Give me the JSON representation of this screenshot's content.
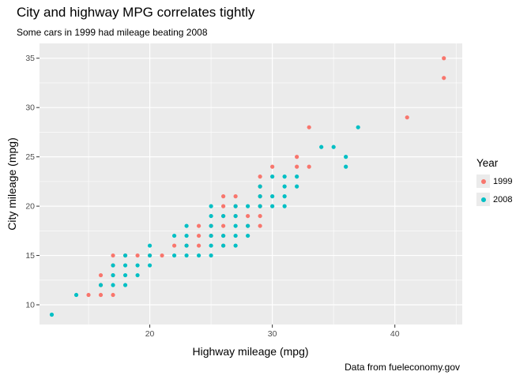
{
  "chart_data": {
    "type": "scatter",
    "title": "City and highway MPG correlates tightly",
    "subtitle": "Some cars in 1999 had mileage beating 2008",
    "caption": "Data from fueleconomy.gov",
    "xlabel": "Highway mileage (mpg)",
    "ylabel": "City mileage (mpg)",
    "xlim": [
      11,
      45.5
    ],
    "ylim": [
      8,
      36.5
    ],
    "x_ticks": [
      20,
      30,
      40
    ],
    "y_ticks": [
      10,
      15,
      20,
      25,
      30,
      35
    ],
    "grid": true,
    "legend_position": "right",
    "legend_title": "Year",
    "series": [
      {
        "name": "1999",
        "color": "#F8766D",
        "points": [
          [
            15,
            11
          ],
          [
            16,
            11
          ],
          [
            17,
            11
          ],
          [
            16,
            12
          ],
          [
            16,
            13
          ],
          [
            17,
            13
          ],
          [
            17,
            14
          ],
          [
            17,
            15
          ],
          [
            18,
            15
          ],
          [
            19,
            15
          ],
          [
            20,
            15
          ],
          [
            21,
            15
          ],
          [
            22,
            16
          ],
          [
            23,
            16
          ],
          [
            24,
            16
          ],
          [
            24,
            17
          ],
          [
            25,
            17
          ],
          [
            26,
            16
          ],
          [
            26,
            17
          ],
          [
            24,
            18
          ],
          [
            25,
            18
          ],
          [
            26,
            18
          ],
          [
            26,
            19
          ],
          [
            26,
            20
          ],
          [
            26,
            21
          ],
          [
            27,
            19
          ],
          [
            27,
            20
          ],
          [
            27,
            21
          ],
          [
            28,
            18
          ],
          [
            28,
            19
          ],
          [
            29,
            18
          ],
          [
            29,
            19
          ],
          [
            29,
            20
          ],
          [
            29,
            21
          ],
          [
            29,
            22
          ],
          [
            29,
            23
          ],
          [
            30,
            24
          ],
          [
            32,
            24
          ],
          [
            32,
            25
          ],
          [
            33,
            24
          ],
          [
            33,
            28
          ],
          [
            41,
            29
          ],
          [
            44,
            33
          ],
          [
            44,
            35
          ]
        ]
      },
      {
        "name": "2008",
        "color": "#00BFC4",
        "points": [
          [
            12,
            9
          ],
          [
            14,
            11
          ],
          [
            16,
            12
          ],
          [
            17,
            12
          ],
          [
            18,
            12
          ],
          [
            17,
            13
          ],
          [
            18,
            13
          ],
          [
            19,
            13
          ],
          [
            17,
            14
          ],
          [
            18,
            14
          ],
          [
            19,
            14
          ],
          [
            20,
            14
          ],
          [
            18,
            15
          ],
          [
            20,
            15
          ],
          [
            22,
            15
          ],
          [
            23,
            15
          ],
          [
            24,
            15
          ],
          [
            25,
            15
          ],
          [
            20,
            16
          ],
          [
            23,
            16
          ],
          [
            25,
            16
          ],
          [
            26,
            16
          ],
          [
            27,
            16
          ],
          [
            22,
            17
          ],
          [
            23,
            17
          ],
          [
            25,
            17
          ],
          [
            26,
            17
          ],
          [
            27,
            17
          ],
          [
            28,
            17
          ],
          [
            23,
            18
          ],
          [
            25,
            18
          ],
          [
            27,
            18
          ],
          [
            28,
            18
          ],
          [
            25,
            19
          ],
          [
            26,
            19
          ],
          [
            27,
            19
          ],
          [
            25,
            20
          ],
          [
            27,
            20
          ],
          [
            28,
            20
          ],
          [
            29,
            20
          ],
          [
            30,
            20
          ],
          [
            31,
            20
          ],
          [
            29,
            21
          ],
          [
            30,
            21
          ],
          [
            31,
            21
          ],
          [
            29,
            22
          ],
          [
            31,
            22
          ],
          [
            30,
            23
          ],
          [
            31,
            23
          ],
          [
            32,
            22
          ],
          [
            32,
            23
          ],
          [
            34,
            26
          ],
          [
            35,
            26
          ],
          [
            36,
            24
          ],
          [
            36,
            25
          ],
          [
            37,
            28
          ]
        ]
      }
    ]
  }
}
